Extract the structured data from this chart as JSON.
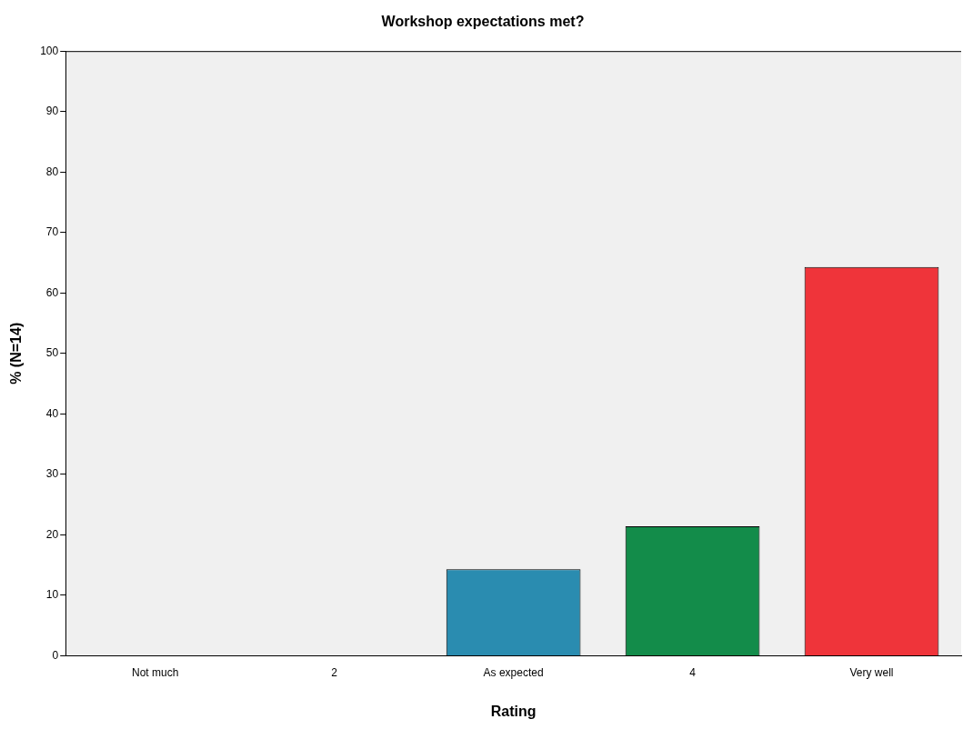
{
  "chart_data": {
    "type": "bar",
    "title": "Workshop expectations met?",
    "xlabel": "Rating",
    "ylabel": "% (N=14)",
    "categories": [
      "Not much",
      "2",
      "As expected",
      "4",
      "Very well"
    ],
    "values": [
      0,
      0,
      14.3,
      21.4,
      64.3
    ],
    "colors": [
      "#3e58ac",
      "#d3ce97",
      "#2a8cb0",
      "#138c4a",
      "#ef343a"
    ],
    "ylim": [
      0,
      100
    ],
    "yticks": [
      0,
      10,
      20,
      30,
      40,
      50,
      60,
      70,
      80,
      90,
      100
    ],
    "grid": false,
    "legend": false
  }
}
